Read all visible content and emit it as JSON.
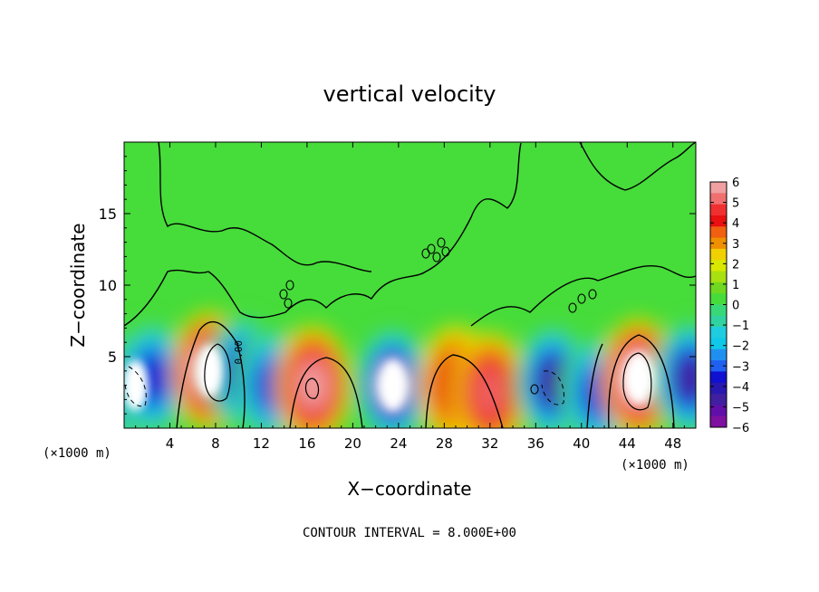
{
  "chart_data": {
    "type": "heatmap",
    "title": "vertical velocity",
    "xlabel": "X−coordinate",
    "ylabel": "Z−coordinate",
    "xunit": "(×1000 m)",
    "yunit": "(×1000 m)",
    "xlim": [
      0,
      50
    ],
    "ylim": [
      0,
      20
    ],
    "xticks": [
      4,
      8,
      12,
      16,
      20,
      24,
      28,
      32,
      36,
      40,
      44,
      48
    ],
    "yticks": [
      5,
      10,
      15
    ],
    "zero_contour_label": "0.00",
    "colorbar": {
      "range": [
        -6,
        6
      ],
      "ticks": [
        "6",
        "5",
        "4",
        "3",
        "2",
        "1",
        "0",
        "−1",
        "−2",
        "−3",
        "−4",
        "−5",
        "−6"
      ]
    },
    "features": [
      {
        "x": 1.0,
        "z": 3.0,
        "w": -7
      },
      {
        "x": 2.5,
        "z": 3.5,
        "w": -5
      },
      {
        "x": 7.5,
        "z": 4.0,
        "w": 8
      },
      {
        "x": 10.5,
        "z": 3.8,
        "w": -6
      },
      {
        "x": 13.0,
        "z": 3.0,
        "w": -5
      },
      {
        "x": 16.5,
        "z": 3.0,
        "w": 6
      },
      {
        "x": 23.5,
        "z": 3.0,
        "w": -7
      },
      {
        "x": 29.0,
        "z": 3.0,
        "w": 4
      },
      {
        "x": 32.0,
        "z": 2.5,
        "w": 5
      },
      {
        "x": 37.5,
        "z": 3.2,
        "w": -6
      },
      {
        "x": 41.5,
        "z": 2.5,
        "w": -5
      },
      {
        "x": 45.0,
        "z": 3.5,
        "w": 8
      },
      {
        "x": 49.5,
        "z": 3.5,
        "w": -6
      }
    ],
    "contour_interval_label": "CONTOUR INTERVAL = 8.000E+00"
  }
}
